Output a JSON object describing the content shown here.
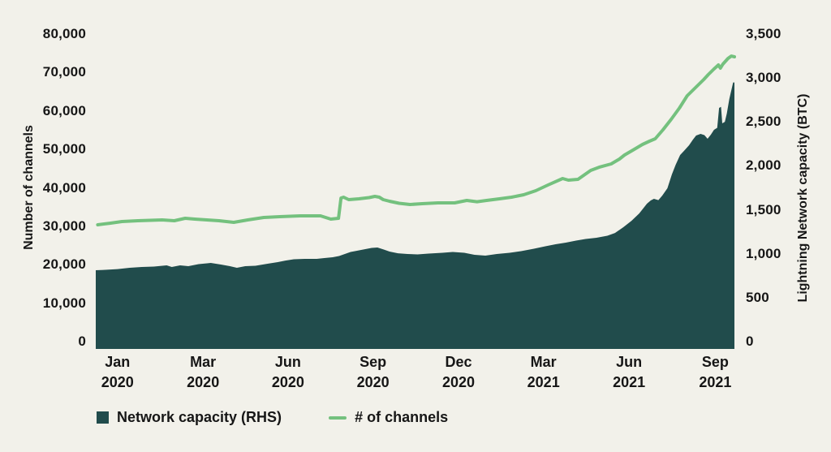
{
  "chart_data": {
    "type": "area+line",
    "title": "",
    "background_color": "#f2f1ea",
    "text_color": "#161616",
    "grid": false,
    "left_axis": {
      "label": "Number of channels",
      "min": 0,
      "max": 80000,
      "ticks": [
        {
          "value": 80000,
          "label": "80,000"
        },
        {
          "value": 70000,
          "label": "70,000"
        },
        {
          "value": 60000,
          "label": "60,000"
        },
        {
          "value": 50000,
          "label": "50,000"
        },
        {
          "value": 40000,
          "label": "40,000"
        },
        {
          "value": 30000,
          "label": "30,000"
        },
        {
          "value": 20000,
          "label": "20,000"
        },
        {
          "value": 10000,
          "label": "10,000"
        },
        {
          "value": 0,
          "label": "0"
        }
      ]
    },
    "right_axis": {
      "label": "Lightning Network capacity (BTC)",
      "min": 0,
      "max": 3500,
      "ticks": [
        {
          "value": 3500,
          "label": "3,500"
        },
        {
          "value": 3000,
          "label": "3,000"
        },
        {
          "value": 2500,
          "label": "2,500"
        },
        {
          "value": 2000,
          "label": "2,000"
        },
        {
          "value": 1500,
          "label": "1,500"
        },
        {
          "value": 1000,
          "label": "1,000"
        },
        {
          "value": 500,
          "label": "500"
        },
        {
          "value": 0,
          "label": "0"
        }
      ]
    },
    "x_axis": {
      "ticks": [
        {
          "month": "Jan",
          "year": "2020",
          "f": 0.034
        },
        {
          "month": "Mar",
          "year": "2020",
          "f": 0.168
        },
        {
          "month": "Jun",
          "year": "2020",
          "f": 0.301
        },
        {
          "month": "Sep",
          "year": "2020",
          "f": 0.434
        },
        {
          "month": "Dec",
          "year": "2020",
          "f": 0.568
        },
        {
          "month": "Mar",
          "year": "2021",
          "f": 0.701
        },
        {
          "month": "Jun",
          "year": "2021",
          "f": 0.835
        },
        {
          "month": "Sep",
          "year": "2021",
          "f": 0.97
        }
      ]
    },
    "series": [
      {
        "name": "Network capacity (RHS)",
        "type": "area",
        "axis": "right",
        "color": "#214c4c",
        "points": [
          [
            0.0,
            813
          ],
          [
            0.015,
            817
          ],
          [
            0.034,
            826
          ],
          [
            0.053,
            840
          ],
          [
            0.072,
            850
          ],
          [
            0.091,
            854
          ],
          [
            0.111,
            868
          ],
          [
            0.119,
            850
          ],
          [
            0.132,
            868
          ],
          [
            0.145,
            859
          ],
          [
            0.161,
            882
          ],
          [
            0.18,
            896
          ],
          [
            0.196,
            877
          ],
          [
            0.21,
            859
          ],
          [
            0.221,
            840
          ],
          [
            0.234,
            859
          ],
          [
            0.25,
            863
          ],
          [
            0.269,
            887
          ],
          [
            0.285,
            905
          ],
          [
            0.297,
            923
          ],
          [
            0.31,
            937
          ],
          [
            0.327,
            942
          ],
          [
            0.346,
            942
          ],
          [
            0.358,
            951
          ],
          [
            0.371,
            960
          ],
          [
            0.381,
            974
          ],
          [
            0.39,
            997
          ],
          [
            0.399,
            1020
          ],
          [
            0.409,
            1034
          ],
          [
            0.422,
            1053
          ],
          [
            0.432,
            1067
          ],
          [
            0.441,
            1071
          ],
          [
            0.451,
            1048
          ],
          [
            0.46,
            1025
          ],
          [
            0.473,
            1006
          ],
          [
            0.488,
            997
          ],
          [
            0.504,
            993
          ],
          [
            0.521,
            1002
          ],
          [
            0.543,
            1011
          ],
          [
            0.559,
            1020
          ],
          [
            0.577,
            1011
          ],
          [
            0.593,
            988
          ],
          [
            0.61,
            979
          ],
          [
            0.628,
            997
          ],
          [
            0.648,
            1011
          ],
          [
            0.666,
            1030
          ],
          [
            0.686,
            1057
          ],
          [
            0.704,
            1085
          ],
          [
            0.72,
            1108
          ],
          [
            0.736,
            1127
          ],
          [
            0.752,
            1150
          ],
          [
            0.767,
            1168
          ],
          [
            0.784,
            1182
          ],
          [
            0.801,
            1205
          ],
          [
            0.813,
            1237
          ],
          [
            0.826,
            1302
          ],
          [
            0.839,
            1376
          ],
          [
            0.851,
            1459
          ],
          [
            0.863,
            1570
          ],
          [
            0.869,
            1607
          ],
          [
            0.874,
            1625
          ],
          [
            0.881,
            1611
          ],
          [
            0.887,
            1662
          ],
          [
            0.895,
            1745
          ],
          [
            0.902,
            1902
          ],
          [
            0.908,
            2013
          ],
          [
            0.915,
            2124
          ],
          [
            0.921,
            2170
          ],
          [
            0.929,
            2235
          ],
          [
            0.935,
            2299
          ],
          [
            0.94,
            2346
          ],
          [
            0.947,
            2364
          ],
          [
            0.953,
            2350
          ],
          [
            0.958,
            2309
          ],
          [
            0.963,
            2355
          ],
          [
            0.968,
            2410
          ],
          [
            0.973,
            2433
          ],
          [
            0.976,
            2660
          ],
          [
            0.979,
            2673
          ],
          [
            0.981,
            2484
          ],
          [
            0.985,
            2502
          ],
          [
            0.988,
            2595
          ],
          [
            0.992,
            2761
          ],
          [
            0.996,
            2890
          ],
          [
            0.998,
            2950
          ],
          [
            1.0,
            2950
          ]
        ]
      },
      {
        "name": "# of channels",
        "type": "line",
        "axis": "left",
        "color": "#74c17e",
        "points": [
          [
            0.003,
            30400
          ],
          [
            0.022,
            30800
          ],
          [
            0.041,
            31240
          ],
          [
            0.066,
            31450
          ],
          [
            0.085,
            31560
          ],
          [
            0.104,
            31660
          ],
          [
            0.123,
            31450
          ],
          [
            0.14,
            32080
          ],
          [
            0.155,
            31870
          ],
          [
            0.174,
            31660
          ],
          [
            0.193,
            31450
          ],
          [
            0.216,
            31030
          ],
          [
            0.238,
            31660
          ],
          [
            0.263,
            32290
          ],
          [
            0.288,
            32500
          ],
          [
            0.32,
            32710
          ],
          [
            0.352,
            32710
          ],
          [
            0.368,
            31870
          ],
          [
            0.38,
            32080
          ],
          [
            0.384,
            37360
          ],
          [
            0.388,
            37570
          ],
          [
            0.396,
            36940
          ],
          [
            0.412,
            37150
          ],
          [
            0.428,
            37460
          ],
          [
            0.437,
            37780
          ],
          [
            0.444,
            37570
          ],
          [
            0.45,
            36940
          ],
          [
            0.46,
            36510
          ],
          [
            0.475,
            35980
          ],
          [
            0.492,
            35670
          ],
          [
            0.511,
            35880
          ],
          [
            0.536,
            36090
          ],
          [
            0.562,
            36090
          ],
          [
            0.581,
            36720
          ],
          [
            0.597,
            36400
          ],
          [
            0.612,
            36720
          ],
          [
            0.632,
            37150
          ],
          [
            0.651,
            37570
          ],
          [
            0.67,
            38200
          ],
          [
            0.689,
            39260
          ],
          [
            0.708,
            40730
          ],
          [
            0.731,
            42420
          ],
          [
            0.74,
            42000
          ],
          [
            0.755,
            42210
          ],
          [
            0.775,
            44530
          ],
          [
            0.788,
            45370
          ],
          [
            0.807,
            46220
          ],
          [
            0.82,
            47490
          ],
          [
            0.828,
            48540
          ],
          [
            0.841,
            49810
          ],
          [
            0.856,
            51290
          ],
          [
            0.867,
            52130
          ],
          [
            0.876,
            52760
          ],
          [
            0.888,
            55090
          ],
          [
            0.901,
            57830
          ],
          [
            0.914,
            60790
          ],
          [
            0.926,
            63950
          ],
          [
            0.939,
            66060
          ],
          [
            0.952,
            68170
          ],
          [
            0.959,
            69440
          ],
          [
            0.968,
            70920
          ],
          [
            0.975,
            71970
          ],
          [
            0.978,
            71130
          ],
          [
            0.982,
            72180
          ],
          [
            0.99,
            73660
          ],
          [
            0.995,
            74290
          ],
          [
            1.0,
            74080
          ]
        ]
      }
    ],
    "legend": [
      {
        "label": "Network capacity (RHS)",
        "swatch": "square",
        "color": "#214c4c"
      },
      {
        "label": "# of channels",
        "swatch": "dash",
        "color": "#74c17e"
      }
    ],
    "legend_position": "bottom-left"
  }
}
